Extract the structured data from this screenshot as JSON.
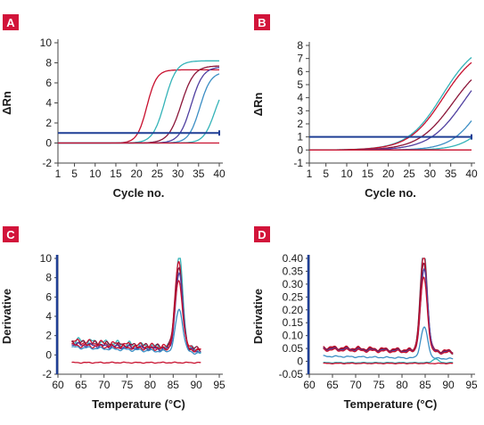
{
  "colors": {
    "badge": "#d2143a",
    "threshold": "#1f3f95",
    "axis": "#444444",
    "series": {
      "crimson": "#c8102e",
      "dark_red": "#8b1538",
      "cyan": "#34b3b8",
      "blue": "#3b8ec4",
      "purple": "#4f3fa0",
      "navy": "#1f3f95"
    }
  },
  "chart_data": [
    {
      "id": "A",
      "type": "line",
      "panel_label": "A",
      "xlabel": "Cycle no.",
      "ylabel": "ΔRn",
      "xlim": [
        1,
        40
      ],
      "ylim": [
        -2,
        10
      ],
      "xticks": [
        1,
        5,
        10,
        15,
        20,
        25,
        30,
        35,
        40
      ],
      "yticks": [
        -2,
        0,
        2,
        4,
        6,
        8,
        10
      ],
      "threshold": 1,
      "grid": false,
      "series": [
        {
          "kind": "sigmoid",
          "color": "crimson",
          "base": 0,
          "top": 7.3,
          "mid": 22.5,
          "k": 0.85
        },
        {
          "kind": "sigmoid",
          "color": "cyan",
          "base": 0,
          "top": 8.2,
          "mid": 26.8,
          "k": 0.7
        },
        {
          "kind": "sigmoid",
          "color": "dark_red",
          "base": 0,
          "top": 7.7,
          "mid": 30.8,
          "k": 0.65
        },
        {
          "kind": "sigmoid",
          "color": "purple",
          "base": 0,
          "top": 7.6,
          "mid": 33.2,
          "k": 0.7
        },
        {
          "kind": "sigmoid",
          "color": "blue",
          "base": 0,
          "top": 7.1,
          "mid": 35.3,
          "k": 0.75
        },
        {
          "kind": "sigmoid",
          "color": "cyan",
          "base": 0,
          "top": 6.2,
          "mid": 38.9,
          "k": 0.75
        },
        {
          "kind": "sigmoid",
          "color": "crimson",
          "base": 0,
          "top": 0,
          "mid": 30,
          "k": 1
        }
      ]
    },
    {
      "id": "B",
      "type": "line",
      "panel_label": "B",
      "xlabel": "Cycle no.",
      "ylabel": "ΔRn",
      "xlim": [
        1,
        40
      ],
      "ylim": [
        -1,
        8
      ],
      "xticks": [
        1,
        5,
        10,
        15,
        20,
        25,
        30,
        35,
        40
      ],
      "yticks": [
        -1,
        0,
        1,
        2,
        3,
        4,
        5,
        6,
        7,
        8
      ],
      "threshold": 1,
      "grid": false,
      "series": [
        {
          "kind": "sigmoid",
          "color": "cyan",
          "base": 0,
          "top": 8.4,
          "mid": 33.0,
          "k": 0.24
        },
        {
          "kind": "sigmoid",
          "color": "crimson",
          "base": 0,
          "top": 8.0,
          "mid": 33.2,
          "k": 0.24
        },
        {
          "kind": "sigmoid",
          "color": "dark_red",
          "base": 0,
          "top": 7.2,
          "mid": 35.5,
          "k": 0.24
        },
        {
          "kind": "sigmoid",
          "color": "purple",
          "base": 0,
          "top": 7.5,
          "mid": 38.2,
          "k": 0.24
        },
        {
          "kind": "sigmoid",
          "color": "blue",
          "base": 0,
          "top": 6.5,
          "mid": 42.3,
          "k": 0.28
        },
        {
          "kind": "sigmoid",
          "color": "cyan",
          "base": 0,
          "top": 4.0,
          "mid": 44.0,
          "k": 0.3
        },
        {
          "kind": "sigmoid",
          "color": "crimson",
          "base": 0,
          "top": 0,
          "mid": 30,
          "k": 1
        }
      ]
    },
    {
      "id": "C",
      "type": "line",
      "panel_label": "C",
      "xlabel": "Temperature (°C)",
      "ylabel": "Derivative",
      "xlim": [
        60,
        95
      ],
      "ylim": [
        -2,
        10
      ],
      "xticks": [
        60,
        65,
        70,
        75,
        80,
        85,
        90,
        95
      ],
      "yticks": [
        -2,
        0,
        2,
        4,
        6,
        8,
        10
      ],
      "grid": false,
      "series": [
        {
          "kind": "melt",
          "color": "cyan",
          "x0": 63,
          "x1": 91,
          "b0": 1.5,
          "b1": 0.5,
          "peak": 9.5,
          "pos": 86.3,
          "w": 0.8,
          "wob": 0.25
        },
        {
          "kind": "melt",
          "color": "crimson",
          "x0": 63,
          "x1": 91,
          "b0": 1.4,
          "b1": 0.6,
          "peak": 8.8,
          "pos": 86.2,
          "w": 0.8,
          "wob": 0.2
        },
        {
          "kind": "melt",
          "color": "dark_red",
          "x0": 63,
          "x1": 91,
          "b0": 1.3,
          "b1": 0.6,
          "peak": 8.4,
          "pos": 86.2,
          "w": 0.8,
          "wob": 0.2
        },
        {
          "kind": "melt",
          "color": "purple",
          "x0": 63,
          "x1": 91,
          "b0": 1.1,
          "b1": 0.4,
          "peak": 7.8,
          "pos": 86.3,
          "w": 0.8,
          "wob": 0.15
        },
        {
          "kind": "melt",
          "color": "crimson",
          "x0": 63,
          "x1": 91,
          "b0": 1.0,
          "b1": 0.5,
          "peak": 7.2,
          "pos": 86.2,
          "w": 0.8,
          "wob": 0.15
        },
        {
          "kind": "melt",
          "color": "blue",
          "x0": 63,
          "x1": 91,
          "b0": 0.8,
          "b1": 0.2,
          "peak": 4.4,
          "pos": 86.3,
          "w": 0.8,
          "wob": 0.1
        },
        {
          "kind": "melt",
          "color": "crimson",
          "x0": 63,
          "x1": 91,
          "b0": -0.8,
          "b1": -0.8,
          "peak": 0,
          "pos": 86.3,
          "w": 0.8,
          "wob": 0.04
        }
      ]
    },
    {
      "id": "D",
      "type": "line",
      "panel_label": "D",
      "xlabel": "Temperature (°C)",
      "ylabel": "Derivative",
      "xlim": [
        60,
        95
      ],
      "ylim": [
        -0.05,
        0.4
      ],
      "xticks": [
        60,
        65,
        70,
        75,
        80,
        85,
        90,
        95
      ],
      "yticks": [
        "-0.05",
        "0",
        "0.05",
        "0.10",
        "0.15",
        "0.20",
        "0.25",
        "0.30",
        "0.35",
        "0.40"
      ],
      "grid": false,
      "series": [
        {
          "kind": "melt",
          "color": "cyan",
          "x0": 63,
          "x1": 91,
          "b0": 0.05,
          "b1": 0.035,
          "peak": 0.395,
          "pos": 84.7,
          "w": 0.75,
          "wob": 0.005
        },
        {
          "kind": "melt",
          "color": "crimson",
          "x0": 63,
          "x1": 91,
          "b0": 0.055,
          "b1": 0.04,
          "peak": 0.37,
          "pos": 84.7,
          "w": 0.75,
          "wob": 0.005
        },
        {
          "kind": "melt",
          "color": "dark_red",
          "x0": 63,
          "x1": 91,
          "b0": 0.052,
          "b1": 0.038,
          "peak": 0.34,
          "pos": 84.7,
          "w": 0.75,
          "wob": 0.004
        },
        {
          "kind": "melt",
          "color": "purple",
          "x0": 63,
          "x1": 91,
          "b0": 0.048,
          "b1": 0.035,
          "peak": 0.32,
          "pos": 84.8,
          "w": 0.75,
          "wob": 0.004
        },
        {
          "kind": "melt",
          "color": "crimson",
          "x0": 63,
          "x1": 91,
          "b0": 0.045,
          "b1": 0.033,
          "peak": 0.29,
          "pos": 84.7,
          "w": 0.75,
          "wob": 0.004
        },
        {
          "kind": "melt",
          "color": "blue",
          "x0": 63,
          "x1": 91,
          "b0": 0.02,
          "b1": 0.01,
          "peak": 0.12,
          "pos": 84.8,
          "w": 0.75,
          "wob": 0.002
        },
        {
          "kind": "melt",
          "color": "cyan",
          "x0": 63,
          "x1": 91,
          "b0": -0.005,
          "b1": -0.005,
          "peak": 0.015,
          "pos": 87.2,
          "w": 0.6,
          "wob": 0.001
        },
        {
          "kind": "melt",
          "color": "crimson",
          "x0": 63,
          "x1": 91,
          "b0": -0.008,
          "b1": -0.008,
          "peak": 0,
          "pos": 84.7,
          "w": 0.75,
          "wob": 0.001
        }
      ]
    }
  ]
}
